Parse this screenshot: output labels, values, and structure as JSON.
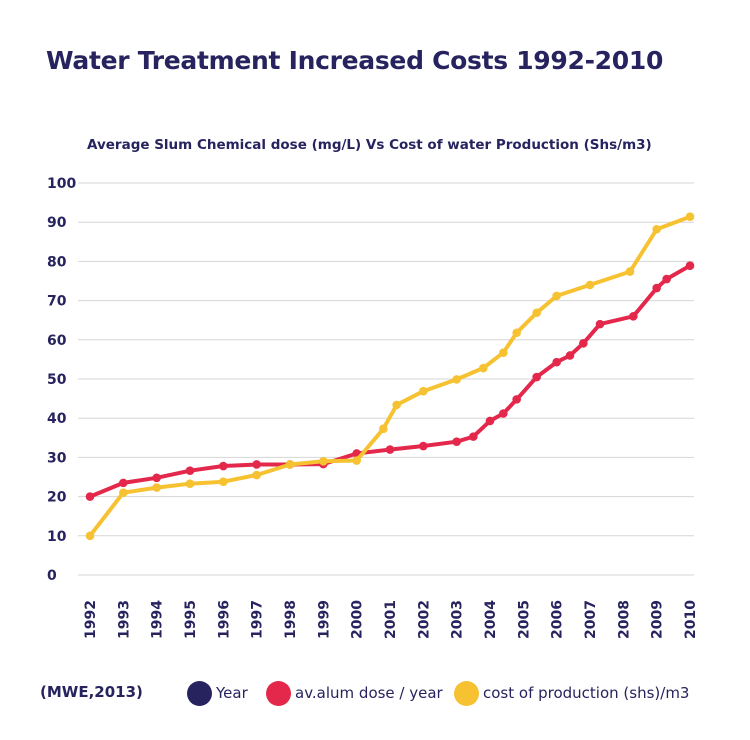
{
  "title": "Water Treatment Increased Costs 1992-2010",
  "source": "(MWE,2013)",
  "colors": {
    "year": "#27235e",
    "alum": "#e3284b",
    "cost": "#f6c232",
    "grid": "#d6d6d6",
    "text": "#27235e"
  },
  "chart_data": {
    "type": "line",
    "title": "Average Slum Chemical dose (mg/L) Vs Cost of water Production (Shs/m3)",
    "xlabel": "",
    "ylabel": "",
    "categories": [
      "1992",
      "1993",
      "1994",
      "1995",
      "1996",
      "1997",
      "1998",
      "1999",
      "2000",
      "2001",
      "2002",
      "2003",
      "2004",
      "2005",
      "2006",
      "2007",
      "2008",
      "2009",
      "2010"
    ],
    "yticks": [
      0,
      10,
      20,
      30,
      40,
      50,
      60,
      70,
      80,
      90,
      100
    ],
    "ylim": [
      0,
      100
    ],
    "xlim": [
      1992,
      2010
    ],
    "grid": true,
    "legend": [
      {
        "name": "Year",
        "color": "#27235e"
      },
      {
        "name": "av.alum dose / year",
        "color": "#e3284b"
      },
      {
        "name": "cost of production (shs)/m3",
        "color": "#f6c232"
      }
    ],
    "series": [
      {
        "name": "av.alum dose / year",
        "color": "#e3284b",
        "x": [
          1992,
          1993,
          1994,
          1995,
          1996,
          1997,
          1998,
          1999,
          2000,
          2001,
          2002,
          2003,
          2003.5,
          2004,
          2004.4,
          2004.8,
          2005.4,
          2006,
          2006.4,
          2006.8,
          2007.3,
          2008.3,
          2009,
          2009.3,
          2010
        ],
        "y": [
          20,
          23.5,
          24.8,
          26.6,
          27.8,
          28.2,
          28.2,
          28.3,
          31,
          32,
          32.9,
          34,
          35.3,
          39.3,
          41.2,
          44.8,
          50.5,
          54.3,
          56,
          59.1,
          64,
          66,
          73.2,
          75.5,
          78.9
        ]
      },
      {
        "name": "cost of production (shs)/m3",
        "color": "#f6c232",
        "x": [
          1992,
          1993,
          1994,
          1995,
          1996,
          1997,
          1998,
          1999,
          2000,
          2000.8,
          2001.2,
          2002,
          2003,
          2003.8,
          2004.4,
          2004.8,
          2005.4,
          2006,
          2007,
          2008.2,
          2009,
          2010
        ],
        "y": [
          10,
          21,
          22.3,
          23.3,
          23.8,
          25.5,
          28.2,
          29,
          29.2,
          37.3,
          43.4,
          46.9,
          49.9,
          52.8,
          56.7,
          61.8,
          66.9,
          71.2,
          74,
          77.4,
          88.2,
          91.4
        ]
      }
    ]
  }
}
